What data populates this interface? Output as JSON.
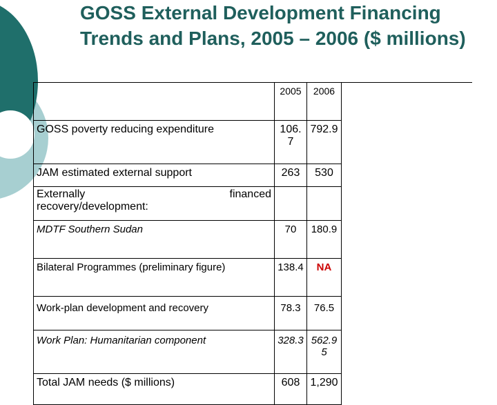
{
  "title": "GOSS External Development Financing Trends and Plans, 2005 – 2006 ($ millions)",
  "table": {
    "header": {
      "label": "",
      "col2005": "2005",
      "col2006": "2006"
    },
    "rows": {
      "goss": {
        "label": "GOSS poverty reducing expenditure",
        "v2005": "106.7",
        "v2006": "792.9"
      },
      "jam": {
        "label": "JAM estimated external support",
        "v2005": "263",
        "v2006": "530"
      },
      "ext": {
        "label_a": "Externally",
        "label_b": "financed",
        "label_c": "recovery/development:"
      },
      "mdtf": {
        "label": "MDTF Southern Sudan",
        "v2005": "70",
        "v2006": "180.9"
      },
      "bilat": {
        "label": "Bilateral Programmes (preliminary figure)",
        "v2005": "138.4",
        "v2006": "NA"
      },
      "work": {
        "label": "Work-plan development and recovery",
        "v2005": "78.3",
        "v2006": "76.5"
      },
      "hum": {
        "label": "Work Plan: Humanitarian component",
        "v2005": "328.3",
        "v2006": "562.95"
      },
      "total": {
        "label": "Total JAM needs ($ millions)",
        "v2005": "608",
        "v2006": "1,290"
      }
    }
  },
  "colors": {
    "title": "#1f5f5c",
    "accent_dark": "#1f6f6b",
    "accent_light": "#a7cfd1",
    "na": "#cc0000"
  }
}
